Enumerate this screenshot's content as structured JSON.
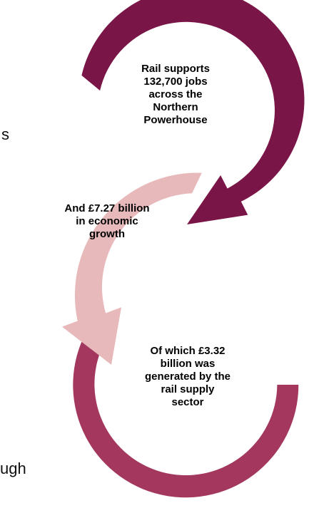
{
  "colors": {
    "top_arrow": "#7a1547",
    "middle_arrow": "#e8b9ba",
    "bottom_ring": "#a3375e",
    "text": "#000000"
  },
  "cutoff_text": {
    "top": "s",
    "bottom": "ugh"
  },
  "steps": [
    {
      "lines": [
        "Rail supports",
        "132,700 jobs",
        "across the",
        "Northern",
        "Powerhouse"
      ]
    },
    {
      "lines": [
        "And £7.27 billion",
        "in economic",
        "growth"
      ]
    },
    {
      "lines": [
        "Of which £3.32",
        "billion was",
        "generated by the",
        "rail supply",
        "sector"
      ]
    }
  ]
}
